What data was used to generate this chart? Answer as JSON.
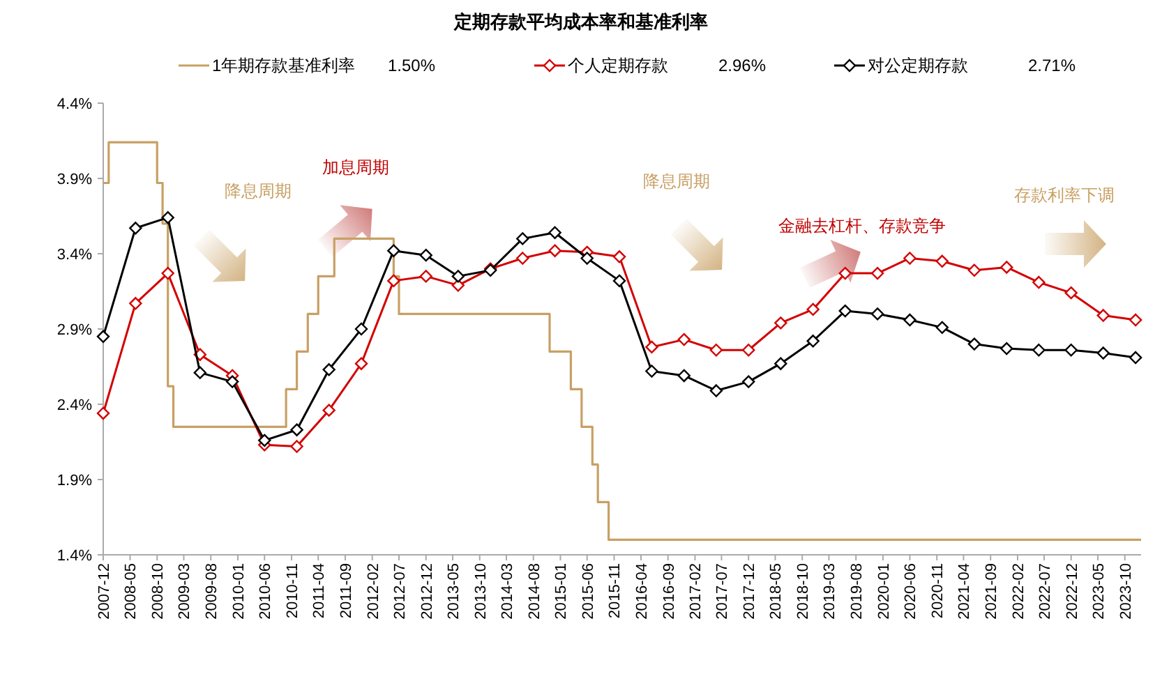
{
  "chart_data": {
    "type": "line",
    "title": "定期存款平均成本率和基准利率",
    "x": [
      "2007-12",
      "2008-06",
      "2008-12",
      "2009-06",
      "2009-12",
      "2010-06",
      "2010-12",
      "2011-06",
      "2011-12",
      "2012-06",
      "2012-12",
      "2013-06",
      "2013-12",
      "2014-06",
      "2014-12",
      "2015-06",
      "2015-12",
      "2016-06",
      "2016-12",
      "2017-06",
      "2017-12",
      "2018-06",
      "2018-12",
      "2019-06",
      "2019-12",
      "2020-06",
      "2020-12",
      "2021-06",
      "2021-12",
      "2022-06",
      "2022-12",
      "2023-06",
      "2023-12"
    ],
    "series": [
      {
        "name": "1年期存款基准利率",
        "type": "step",
        "marker": "none",
        "color": "#c8a064",
        "x": [
          "2007-12",
          "2008-01",
          "2008-10",
          "2008-11",
          "2008-12",
          "2009-01",
          "2010-10",
          "2010-12",
          "2011-02",
          "2011-04",
          "2011-07",
          "2012-06",
          "2012-07",
          "2014-11",
          "2015-03",
          "2015-05",
          "2015-07",
          "2015-08",
          "2015-10",
          "2024-01"
        ],
        "values": [
          3.87,
          4.14,
          3.87,
          3.6,
          2.52,
          2.25,
          2.5,
          2.75,
          3.0,
          3.25,
          3.5,
          3.25,
          3.0,
          2.75,
          2.5,
          2.25,
          2.0,
          1.75,
          1.5,
          1.5
        ]
      },
      {
        "name": "个人定期存款",
        "marker": "diamond",
        "color": "#d40000",
        "values": [
          2.34,
          3.07,
          3.27,
          2.73,
          2.59,
          2.13,
          2.12,
          2.36,
          2.67,
          3.22,
          3.25,
          3.19,
          3.3,
          3.37,
          3.42,
          3.41,
          3.38,
          2.78,
          2.83,
          2.76,
          2.76,
          2.94,
          3.03,
          3.27,
          3.27,
          3.37,
          3.35,
          3.29,
          3.31,
          3.21,
          3.14,
          2.99,
          2.96
        ]
      },
      {
        "name": "对公定期存款",
        "marker": "diamond",
        "color": "#000000",
        "values": [
          2.85,
          3.57,
          3.64,
          2.61,
          2.55,
          2.16,
          2.23,
          2.63,
          2.9,
          3.42,
          3.39,
          3.25,
          3.29,
          3.5,
          3.54,
          3.37,
          3.22,
          2.62,
          2.59,
          2.49,
          2.55,
          2.67,
          2.82,
          3.02,
          3.0,
          2.96,
          2.91,
          2.8,
          2.77,
          2.76,
          2.76,
          2.74,
          2.71
        ]
      }
    ],
    "xlim": [
      "2007-12",
      "2024-01"
    ],
    "xticks": [
      "2007-12",
      "2008-05",
      "2008-10",
      "2009-03",
      "2009-08",
      "2010-01",
      "2010-06",
      "2010-11",
      "2011-04",
      "2011-09",
      "2012-02",
      "2012-07",
      "2012-12",
      "2013-05",
      "2013-10",
      "2014-03",
      "2014-08",
      "2015-01",
      "2015-06",
      "2015-11",
      "2016-04",
      "2016-09",
      "2017-02",
      "2017-07",
      "2017-12",
      "2018-05",
      "2018-10",
      "2019-03",
      "2019-08",
      "2020-01",
      "2020-06",
      "2020-11",
      "2021-04",
      "2021-09",
      "2022-02",
      "2022-07",
      "2022-12",
      "2023-05",
      "2023-10"
    ],
    "ylim": [
      1.4,
      4.4
    ],
    "yticks": [
      {
        "value": 1.4,
        "label": "1.4%"
      },
      {
        "value": 1.9,
        "label": "1.9%"
      },
      {
        "value": 2.4,
        "label": "2.4%"
      },
      {
        "value": 2.9,
        "label": "2.9%"
      },
      {
        "value": 3.4,
        "label": "3.4%"
      },
      {
        "value": 3.9,
        "label": "3.9%"
      },
      {
        "value": 4.4,
        "label": "4.4%"
      }
    ],
    "legend": "top",
    "annotations": [
      "1.50%",
      "2.96%",
      "2.71%",
      "降息周期",
      "加息周期",
      "降息周期",
      "金融去杠杆、存款竞争",
      "存款利率下调"
    ]
  }
}
